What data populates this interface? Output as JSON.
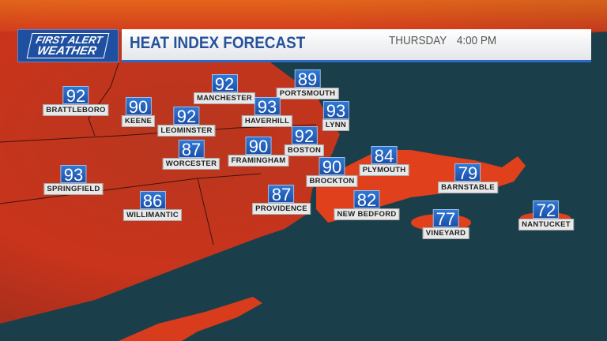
{
  "header": {
    "logo_line1": "FIRST ALERT",
    "logo_line2": "WEATHER",
    "title": "HEAT INDEX FORECAST",
    "day": "THURSDAY",
    "time": "4:00 PM"
  },
  "colors": {
    "land": "#c8321e",
    "ocean": "#1b3f4a",
    "accent": "#2c6ac9"
  },
  "stations": [
    {
      "name": "BRATTLEBORO",
      "value": "92"
    },
    {
      "name": "KEENE",
      "value": "90"
    },
    {
      "name": "LEOMINSTER",
      "value": "92"
    },
    {
      "name": "MANCHESTER",
      "value": "92"
    },
    {
      "name": "PORTSMOUTH",
      "value": "89"
    },
    {
      "name": "HAVERHILL",
      "value": "93"
    },
    {
      "name": "LYNN",
      "value": "93"
    },
    {
      "name": "BOSTON",
      "value": "92"
    },
    {
      "name": "WORCESTER",
      "value": "87"
    },
    {
      "name": "FRAMINGHAM",
      "value": "90"
    },
    {
      "name": "BROCKTON",
      "value": "90"
    },
    {
      "name": "PLYMOUTH",
      "value": "84"
    },
    {
      "name": "BARNSTABLE",
      "value": "79"
    },
    {
      "name": "SPRINGFIELD",
      "value": "93"
    },
    {
      "name": "WILLIMANTIC",
      "value": "86"
    },
    {
      "name": "PROVIDENCE",
      "value": "87"
    },
    {
      "name": "NEW BEDFORD",
      "value": "82"
    },
    {
      "name": "VINEYARD",
      "value": "77"
    },
    {
      "name": "NANTUCKET",
      "value": "72"
    }
  ]
}
